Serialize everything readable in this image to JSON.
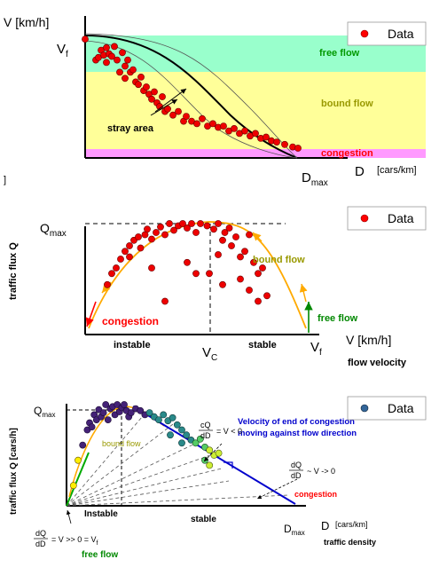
{
  "chart_data": [
    {
      "type": "scatter",
      "title": "",
      "xlabel": "D",
      "xunit": "[cars/km]",
      "ylabel": "V [km/h]",
      "y_tick_labels": [
        "V_f"
      ],
      "x_tick_labels": [
        "D_max"
      ],
      "legend": {
        "label": "Data",
        "placement": "top-right"
      },
      "regions": [
        {
          "label": "free flow",
          "color": "#99ffcc"
        },
        {
          "label": "bound flow",
          "color": "#ffff99"
        },
        {
          "label": "congestion",
          "color": "#ff99ff"
        }
      ],
      "annotations": [
        "stray area"
      ],
      "series": [
        {
          "marker_color": "#ff0000",
          "x": [
            0.0,
            0.04,
            0.05,
            0.06,
            0.07,
            0.08,
            0.08,
            0.09,
            0.1,
            0.11,
            0.12,
            0.13,
            0.14,
            0.15,
            0.15,
            0.16,
            0.17,
            0.18,
            0.19,
            0.2,
            0.21,
            0.22,
            0.23,
            0.24,
            0.25,
            0.26,
            0.27,
            0.28,
            0.29,
            0.3,
            0.31,
            0.33,
            0.35,
            0.37,
            0.38,
            0.4,
            0.42,
            0.44,
            0.46,
            0.48,
            0.5,
            0.52,
            0.54,
            0.56,
            0.58,
            0.6,
            0.62,
            0.64,
            0.66,
            0.68,
            0.7,
            0.72,
            0.75,
            0.78,
            0.8
          ],
          "y": [
            0.97,
            0.8,
            0.82,
            0.88,
            0.84,
            0.9,
            0.78,
            0.85,
            0.83,
            0.91,
            0.8,
            0.7,
            0.86,
            0.75,
            0.65,
            0.8,
            0.7,
            0.72,
            0.62,
            0.6,
            0.66,
            0.55,
            0.58,
            0.52,
            0.48,
            0.54,
            0.45,
            0.42,
            0.5,
            0.38,
            0.4,
            0.35,
            0.38,
            0.3,
            0.34,
            0.3,
            0.28,
            0.32,
            0.26,
            0.28,
            0.25,
            0.26,
            0.22,
            0.24,
            0.2,
            0.22,
            0.18,
            0.2,
            0.16,
            0.17,
            0.14,
            0.13,
            0.11,
            0.09,
            0.08
          ]
        }
      ],
      "xlim": [
        0,
        1
      ],
      "ylim": [
        0,
        1
      ]
    },
    {
      "type": "scatter",
      "title": "",
      "xlabel": "V [km/h]",
      "xlabel2": "flow velocity",
      "ylabel": "traffic flux Q",
      "y_tick_labels": [
        "Q_max"
      ],
      "x_tick_labels": [
        "V_C",
        "V_f"
      ],
      "legend": {
        "label": "Data",
        "placement": "top-right"
      },
      "annotations": [
        "bound flow",
        "congestion",
        "free flow",
        "instable",
        "stable"
      ],
      "series": [
        {
          "marker_color": "#ff0000",
          "x": [
            0.1,
            0.12,
            0.14,
            0.16,
            0.18,
            0.2,
            0.2,
            0.22,
            0.24,
            0.25,
            0.27,
            0.28,
            0.3,
            0.32,
            0.34,
            0.36,
            0.38,
            0.4,
            0.42,
            0.44,
            0.46,
            0.48,
            0.5,
            0.52,
            0.55,
            0.58,
            0.6,
            0.62,
            0.63,
            0.65,
            0.66,
            0.68,
            0.7,
            0.72,
            0.74,
            0.76,
            0.78,
            0.8,
            0.6,
            0.7,
            0.56,
            0.62,
            0.74,
            0.3,
            0.36,
            0.46,
            0.5,
            0.78,
            0.82
          ],
          "y": [
            0.45,
            0.55,
            0.6,
            0.68,
            0.75,
            0.8,
            0.7,
            0.85,
            0.88,
            0.78,
            0.9,
            0.95,
            0.86,
            0.92,
            0.97,
            0.9,
            1.0,
            0.94,
            0.98,
            1.0,
            0.96,
            1.0,
            0.92,
            1.0,
            0.98,
            0.95,
            1.0,
            0.85,
            0.92,
            0.96,
            0.8,
            0.88,
            0.7,
            0.75,
            0.9,
            0.65,
            0.55,
            0.6,
            0.72,
            0.5,
            0.55,
            0.45,
            0.4,
            0.6,
            0.3,
            0.65,
            0.55,
            0.3,
            0.35
          ]
        }
      ],
      "xlim": [
        0,
        1
      ],
      "ylim": [
        0,
        1
      ]
    },
    {
      "type": "scatter",
      "title": "",
      "xlabel": "D",
      "xunit": "[cars/km]",
      "xlabel2": "traffic density",
      "ylabel": "traffic flux Q [cars/h]",
      "y_tick_labels": [
        "Q_max"
      ],
      "x_tick_labels": [
        "D_max"
      ],
      "legend": {
        "label": "Data",
        "placement": "top-right"
      },
      "annotations": [
        "bound flow",
        "instable",
        "stable",
        "congestion",
        "Velocity of end of congestion",
        "moving against flow direction",
        "free flow"
      ],
      "formulas": {
        "f1_num": "cQ",
        "f1_den": "dD",
        "f1_rest": "= V < 0",
        "f2_num": "dQ",
        "f2_den": "dD",
        "f2_rest": "~ V -> 0",
        "f3_num": "dQ",
        "f3_den": "dD",
        "f3_rest": "= V >> 0 = V",
        "f3_sub": "f"
      },
      "series": [
        {
          "marker_color": "gradient yellow-purple-teal",
          "x": [
            0.03,
            0.05,
            0.07,
            0.09,
            0.1,
            0.11,
            0.12,
            0.13,
            0.14,
            0.15,
            0.16,
            0.17,
            0.18,
            0.19,
            0.2,
            0.21,
            0.22,
            0.23,
            0.24,
            0.25,
            0.26,
            0.27,
            0.28,
            0.3,
            0.32,
            0.34,
            0.36,
            0.38,
            0.4,
            0.42,
            0.44,
            0.46,
            0.48,
            0.5,
            0.52,
            0.54,
            0.56,
            0.58,
            0.6,
            0.62,
            0.64,
            0.66,
            0.6,
            0.62,
            0.45,
            0.5
          ],
          "y": [
            0.2,
            0.45,
            0.6,
            0.75,
            0.82,
            0.78,
            0.9,
            0.85,
            0.95,
            0.88,
            0.92,
            1.0,
            0.85,
            0.96,
            0.98,
            0.9,
            1.0,
            0.93,
            0.97,
            1.0,
            0.94,
            0.88,
            0.92,
            0.96,
            0.94,
            0.9,
            0.92,
            0.88,
            0.85,
            0.9,
            0.84,
            0.87,
            0.8,
            0.75,
            0.7,
            0.65,
            0.62,
            0.66,
            0.58,
            0.55,
            0.5,
            0.52,
            0.45,
            0.4,
            0.7,
            0.62
          ]
        }
      ],
      "xlim": [
        0,
        1
      ],
      "ylim": [
        0,
        1
      ]
    }
  ],
  "labels": {
    "c1_ylab": "V [km/h]",
    "c1_vf": "V",
    "c1_vf_sub": "f",
    "c1_dmax": "D",
    "c1_dmax_sub": "max",
    "c1_d": "D",
    "c1_unit": "[cars/km]",
    "c1_free": "free flow",
    "c1_bound": "bound flow",
    "c1_cong": "congestion",
    "c1_stray": "stray area",
    "c1_legend": "Data",
    "bracket": "]",
    "c2_ylab": "traffic flux Q",
    "c2_qmax": "Q",
    "c2_qmax_sub": "max",
    "c2_bound": "bound flow",
    "c2_cong": "congestion",
    "c2_free": "free flow",
    "c2_instable": "instable",
    "c2_stable": "stable",
    "c2_vc": "V",
    "c2_vc_sub": "C",
    "c2_vf": "V",
    "c2_vf_sub": "f",
    "c2_xlab": "V [km/h]",
    "c2_xlab2": "flow velocity",
    "c2_legend": "Data",
    "c3_ylab": "traffic flux Q [cars/h]",
    "c3_qmax": "Q",
    "c3_qmax_sub": "max",
    "c3_bound": "bound flow",
    "c3_instable": "Instable",
    "c3_stable": "stable",
    "c3_cong": "congestion",
    "c3_vel1": "Velocity of end of congestion",
    "c3_vel2": "moving against flow direction",
    "c3_dmax": "D",
    "c3_dmax_sub": "max",
    "c3_d": "D",
    "c3_unit": "[cars/km]",
    "c3_density": "traffic density",
    "c3_freeflow": "free flow",
    "c3_legend": "Data"
  }
}
